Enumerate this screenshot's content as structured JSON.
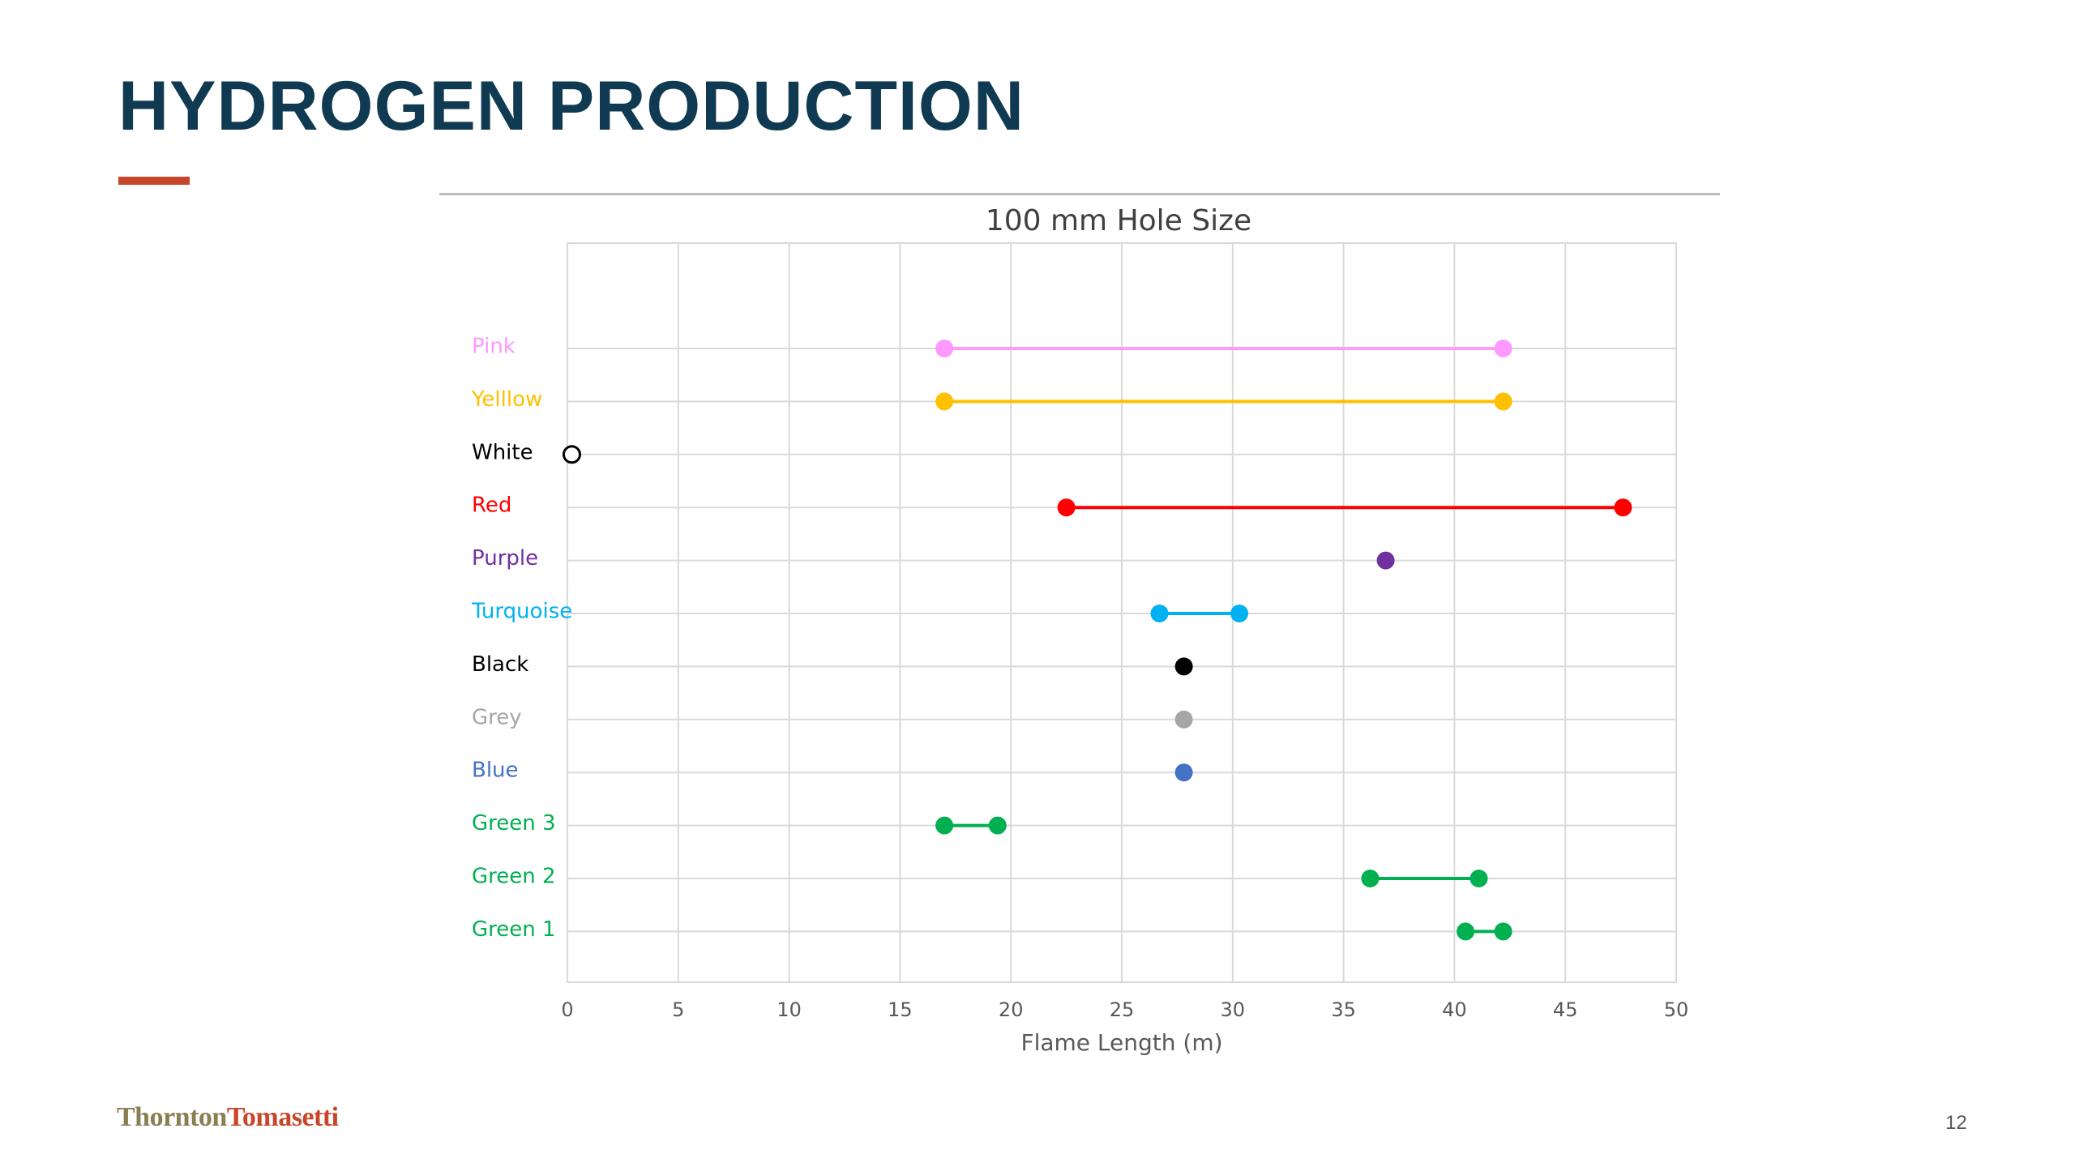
{
  "slide": {
    "title": "HYDROGEN PRODUCTION",
    "accent_color": "#c8472a",
    "title_color": "#0f3a52",
    "page_number": "12",
    "logo": {
      "part1": "Thornton",
      "part2": "Tomasetti"
    }
  },
  "chart_data": {
    "type": "dumbbell",
    "title": "100 mm Hole Size",
    "xlabel": "Flame Length (m)",
    "ylabel": "",
    "xlim": [
      0,
      50
    ],
    "xticks": [
      0,
      5,
      10,
      15,
      20,
      25,
      30,
      35,
      40,
      45,
      50
    ],
    "grid": true,
    "legend": "none",
    "categories": [
      {
        "label": "Pink",
        "color": "#ff99ff",
        "min": 17,
        "max": 42.2
      },
      {
        "label": "Yelllow",
        "color": "#ffc000",
        "min": 17,
        "max": 42.2
      },
      {
        "label": "White",
        "color": "#000000",
        "min": 0.2,
        "max": 0.2,
        "hollow": true
      },
      {
        "label": "Red",
        "color": "#ff0000",
        "min": 22.5,
        "max": 47.6
      },
      {
        "label": "Purple",
        "color": "#7030a0",
        "min": 36.9,
        "max": 36.9
      },
      {
        "label": "Turquoise",
        "color": "#00b0f0",
        "min": 26.7,
        "max": 30.3
      },
      {
        "label": "Black",
        "color": "#000000",
        "min": 27.8,
        "max": 27.8
      },
      {
        "label": "Grey",
        "color": "#a6a6a6",
        "min": 27.8,
        "max": 27.8
      },
      {
        "label": "Blue",
        "color": "#4472c4",
        "min": 27.8,
        "max": 27.8
      },
      {
        "label": "Green 3",
        "color": "#00b050",
        "min": 17,
        "max": 19.4
      },
      {
        "label": "Green 2",
        "color": "#00b050",
        "min": 36.2,
        "max": 41.1
      },
      {
        "label": "Green 1",
        "color": "#00b050",
        "min": 40.5,
        "max": 42.2
      }
    ]
  }
}
